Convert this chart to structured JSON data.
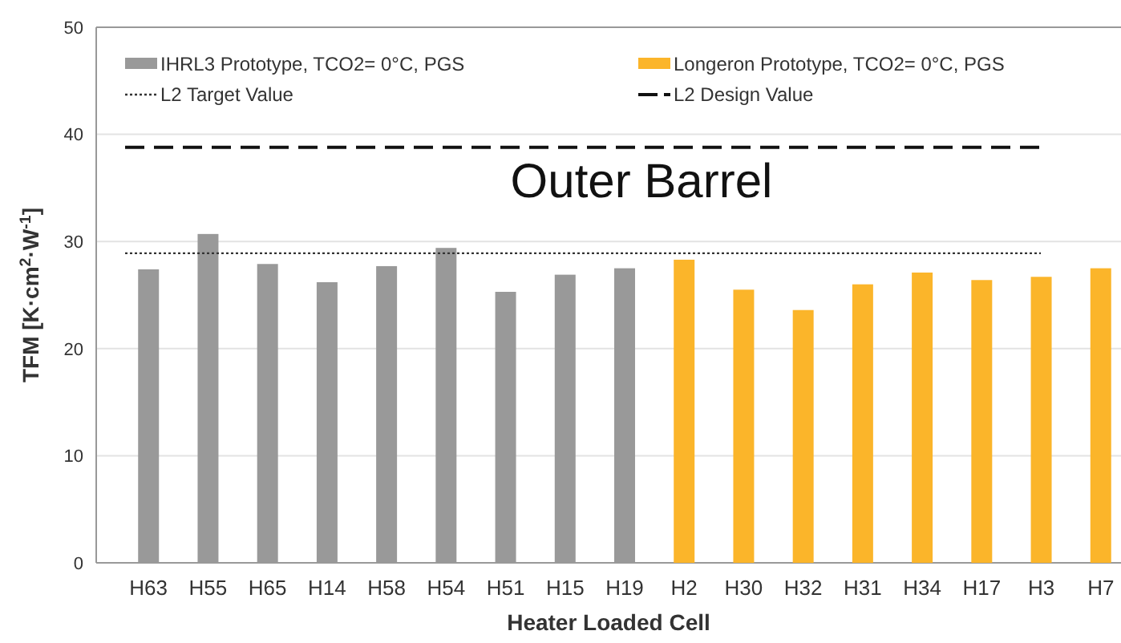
{
  "chart_data": {
    "type": "bar",
    "xlabel": "Heater Loaded Cell",
    "ylabel": "TFM [K·cm$^{2}$·W$^{-1}$]",
    "categories": [
      "H63",
      "H55",
      "H65",
      "H14",
      "H58",
      "H54",
      "H51",
      "H15",
      "H19",
      "H2",
      "H30",
      "H32",
      "H31",
      "H34",
      "H17",
      "H3",
      "H7"
    ],
    "series": [
      {
        "name": "IHRL3 Prototype, TCO2= 0°C, PGS",
        "color": "#999999",
        "values": [
          27.4,
          30.7,
          27.9,
          26.2,
          27.7,
          29.4,
          25.3,
          26.9,
          27.5,
          null,
          null,
          null,
          null,
          null,
          null,
          null,
          null
        ]
      },
      {
        "name": "Longeron Prototype, TCO2= 0°C, PGS",
        "color": "#fbb52a",
        "values": [
          null,
          null,
          null,
          null,
          null,
          null,
          null,
          null,
          null,
          28.3,
          25.5,
          23.6,
          26.0,
          27.1,
          26.4,
          26.7,
          27.5
        ]
      }
    ],
    "ylim": [
      0,
      50
    ],
    "yticks": [
      0,
      10,
      20,
      30,
      40,
      50
    ],
    "grid": "y",
    "legend": "top",
    "ref_lines": [
      {
        "axis": "y",
        "value": 28.9,
        "label": "L2 Target Value",
        "line_style": "dotted",
        "color": "#333333"
      },
      {
        "axis": "y",
        "value": 38.8,
        "label": "L2 Design Value",
        "line_style": "dashed",
        "color": "#111111"
      }
    ],
    "annotations": [
      "Outer Barrel"
    ]
  }
}
